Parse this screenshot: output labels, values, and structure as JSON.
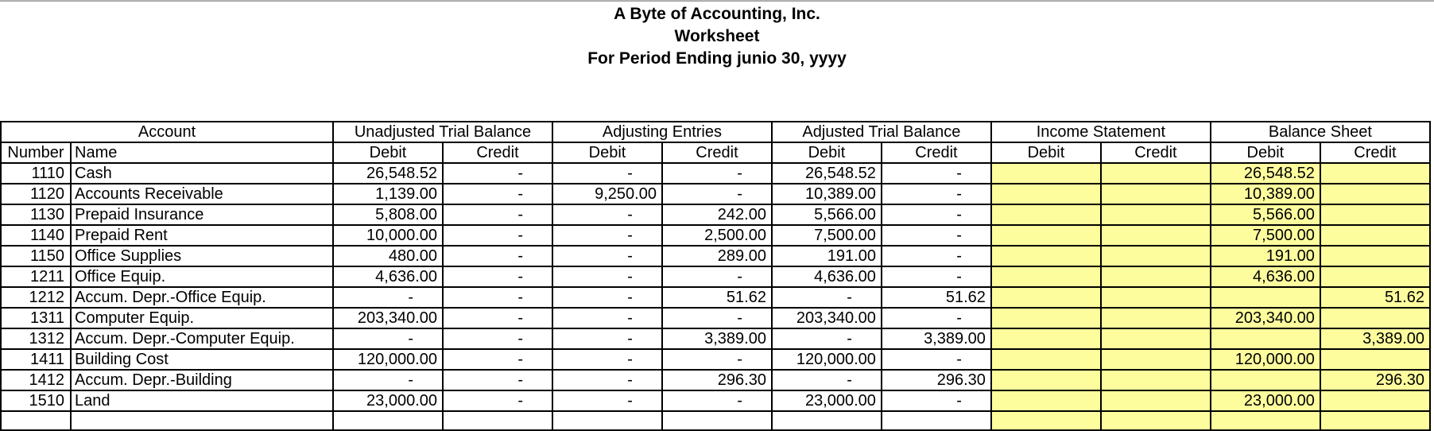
{
  "title": {
    "company": "A Byte of Accounting, Inc.",
    "document": "Worksheet",
    "period": "For Period Ending junio 30, yyyy"
  },
  "table": {
    "section_headers": {
      "account": "Account",
      "unadjusted_trial_balance": "Unadjusted Trial Balance",
      "adjusting_entries": "Adjusting Entries",
      "adjusted_trial_balance": "Adjusted Trial Balance",
      "income_statement": "Income Statement",
      "balance_sheet": "Balance Sheet"
    },
    "column_headers": {
      "number": "Number",
      "name": "Name",
      "debit": "Debit",
      "credit": "Credit"
    },
    "highlight_color": "#FDFD9E",
    "rows": [
      {
        "number": "1110",
        "name": "Cash",
        "cells": [
          "26,548.52",
          "-",
          "-",
          "-",
          "26,548.52",
          "-",
          "",
          "",
          "26,548.52",
          ""
        ]
      },
      {
        "number": "1120",
        "name": "Accounts Receivable",
        "cells": [
          "1,139.00",
          "-",
          "9,250.00",
          "-",
          "10,389.00",
          "-",
          "",
          "",
          "10,389.00",
          ""
        ]
      },
      {
        "number": "1130",
        "name": "Prepaid Insurance",
        "cells": [
          "5,808.00",
          "-",
          "-",
          "242.00",
          "5,566.00",
          "-",
          "",
          "",
          "5,566.00",
          ""
        ]
      },
      {
        "number": "1140",
        "name": "Prepaid Rent",
        "cells": [
          "10,000.00",
          "-",
          "-",
          "2,500.00",
          "7,500.00",
          "-",
          "",
          "",
          "7,500.00",
          ""
        ]
      },
      {
        "number": "1150",
        "name": "Office Supplies",
        "cells": [
          "480.00",
          "-",
          "-",
          "289.00",
          "191.00",
          "-",
          "",
          "",
          "191.00",
          ""
        ]
      },
      {
        "number": "1211",
        "name": "Office Equip.",
        "cells": [
          "4,636.00",
          "-",
          "-",
          "-",
          "4,636.00",
          "-",
          "",
          "",
          "4,636.00",
          ""
        ]
      },
      {
        "number": "1212",
        "name": "Accum. Depr.-Office Equip.",
        "cells": [
          "-",
          "-",
          "-",
          "51.62",
          "-",
          "51.62",
          "",
          "",
          "",
          "51.62"
        ]
      },
      {
        "number": "1311",
        "name": "Computer Equip.",
        "cells": [
          "203,340.00",
          "-",
          "-",
          "-",
          "203,340.00",
          "-",
          "",
          "",
          "203,340.00",
          ""
        ]
      },
      {
        "number": "1312",
        "name": "Accum. Depr.-Computer Equip.",
        "cells": [
          "-",
          "-",
          "-",
          "3,389.00",
          "-",
          "3,389.00",
          "",
          "",
          "",
          "3,389.00"
        ]
      },
      {
        "number": "1411",
        "name": "Building Cost",
        "cells": [
          "120,000.00",
          "-",
          "-",
          "-",
          "120,000.00",
          "-",
          "",
          "",
          "120,000.00",
          ""
        ]
      },
      {
        "number": "1412",
        "name": "Accum. Depr.-Building",
        "cells": [
          "-",
          "-",
          "-",
          "296.30",
          "-",
          "296.30",
          "",
          "",
          "",
          "296.30"
        ]
      },
      {
        "number": "1510",
        "name": "Land",
        "cells": [
          "23,000.00",
          "-",
          "-",
          "-",
          "23,000.00",
          "-",
          "",
          "",
          "23,000.00",
          ""
        ]
      }
    ]
  }
}
